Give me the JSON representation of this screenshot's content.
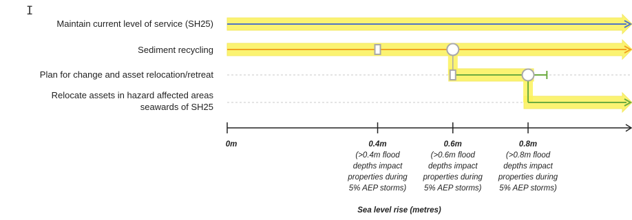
{
  "rows": [
    {
      "id": "sh25",
      "label": "Maintain current level of service (SH25)"
    },
    {
      "id": "sediment",
      "label": "Sediment recycling"
    },
    {
      "id": "plan",
      "label": "Plan for change and asset relocation/retreat"
    },
    {
      "id": "relocate",
      "label": "Relocate assets in hazard affected areas\nseawards of SH25"
    }
  ],
  "axis": {
    "title": "Sea level rise (metres)",
    "range": [
      0,
      1.08
    ],
    "ticks": [
      {
        "value": 0,
        "label": "0m",
        "desc": ""
      },
      {
        "value": 0.4,
        "label": "0.4m",
        "desc": "(>0.4m flood\ndepths impact\nproperties during\n5% AEP storms)"
      },
      {
        "value": 0.6,
        "label": "0.6m",
        "desc": "(>0.6m flood\ndepths impact\nproperties during\n5% AEP storms)"
      },
      {
        "value": 0.8,
        "label": "0.8m",
        "desc": "(>0.8m flood\ndepths impact\nproperties during\n5% AEP storms)"
      }
    ]
  },
  "colors": {
    "highlight": "#fbf25a",
    "highlight_stroke": "#f2e64a",
    "sh25_line": "#4f74c4",
    "sediment_line": "#f2a320",
    "green_line": "#6cab3f",
    "dashed": "#c8c8c8",
    "node_stroke": "#a9a9a9"
  },
  "chart_data": {
    "type": "adaptation-pathways",
    "x_unit": "Sea level rise (metres)",
    "pathways": [
      {
        "row": "Maintain current level of service (SH25)",
        "start": 0,
        "end": "beyond",
        "continues": true
      },
      {
        "row": "Sediment recycling",
        "start": 0,
        "end": "beyond",
        "continues": true,
        "decision_point": 0.4,
        "transfer_at": 0.6
      },
      {
        "row": "Plan for change and asset relocation/retreat",
        "start": 0.6,
        "end": 0.85,
        "continues": false,
        "decision_point": 0.6,
        "transfer_at": 0.8
      },
      {
        "row": "Relocate assets in hazard affected areas seawards of SH25",
        "start": 0.8,
        "end": "beyond",
        "continues": true
      }
    ]
  }
}
